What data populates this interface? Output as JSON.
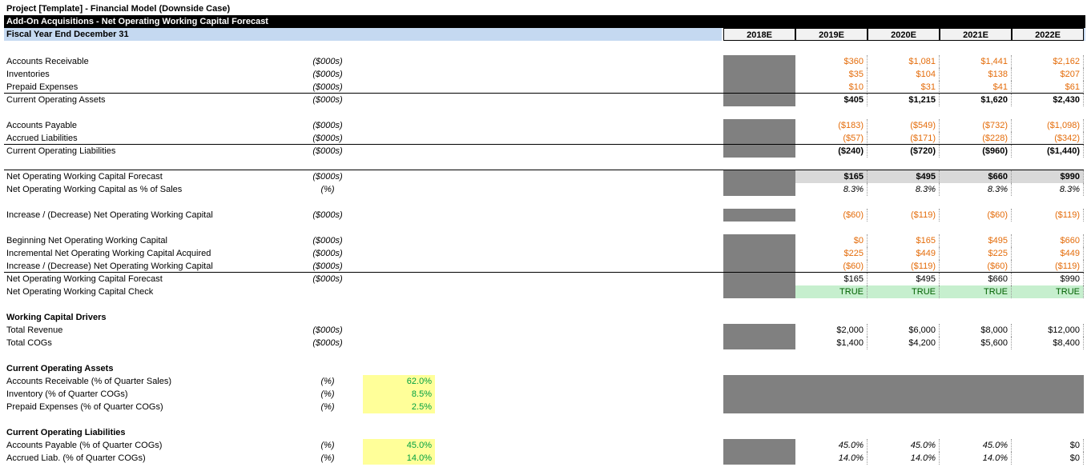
{
  "header": {
    "title": "Project [Template] - Financial Model (Downside Case)",
    "subtitle": "Add-On Acquisitions - Net Operating Working Capital Forecast",
    "fiscal_label": "Fiscal Year End December 31",
    "years": [
      "2018E",
      "2019E",
      "2020E",
      "2021E",
      "2022E"
    ]
  },
  "sections": [
    {
      "rows": [
        {
          "label": "Accounts Receivable",
          "unit": "($000s)",
          "values": [
            "$360",
            "$1,081",
            "$1,441",
            "$2,162"
          ]
        },
        {
          "label": "Inventories",
          "unit": "($000s)",
          "values": [
            "$35",
            "$104",
            "$138",
            "$207"
          ]
        },
        {
          "label": "Prepaid Expenses",
          "unit": "($000s)",
          "values": [
            "$10",
            "$31",
            "$41",
            "$61"
          ]
        },
        {
          "label": "Current Operating Assets",
          "unit": "($000s)",
          "values": [
            "$405",
            "$1,215",
            "$1,620",
            "$2,430"
          ]
        }
      ]
    },
    {
      "rows": [
        {
          "label": "Accounts Payable",
          "unit": "($000s)",
          "values": [
            "($183)",
            "($549)",
            "($732)",
            "($1,098)"
          ]
        },
        {
          "label": "Accrued Liabilities",
          "unit": "($000s)",
          "values": [
            "($57)",
            "($171)",
            "($228)",
            "($342)"
          ]
        },
        {
          "label": "Current Operating Liabilities",
          "unit": "($000s)",
          "values": [
            "($240)",
            "($720)",
            "($960)",
            "($1,440)"
          ]
        }
      ]
    },
    {
      "rows": [
        {
          "label": "Net Operating Working Capital Forecast",
          "unit": "($000s)",
          "values": [
            "$165",
            "$495",
            "$660",
            "$990"
          ]
        },
        {
          "label": "Net Operating Working Capital as % of Sales",
          "unit": "(%)",
          "values": [
            "8.3%",
            "8.3%",
            "8.3%",
            "8.3%"
          ]
        }
      ]
    },
    {
      "rows": [
        {
          "label": "Increase / (Decrease) Net Operating Working Capital",
          "unit": "($000s)",
          "values": [
            "($60)",
            "($119)",
            "($60)",
            "($119)"
          ]
        }
      ]
    },
    {
      "rows": [
        {
          "label": "Beginning Net Operating Working Capital",
          "unit": "($000s)",
          "values": [
            "$0",
            "$165",
            "$495",
            "$660"
          ]
        },
        {
          "label": "Incremental Net Operating Working Capital Acquired",
          "unit": "($000s)",
          "values": [
            "$225",
            "$449",
            "$225",
            "$449"
          ]
        },
        {
          "label": "Increase / (Decrease) Net Operating Working Capital",
          "unit": "($000s)",
          "values": [
            "($60)",
            "($119)",
            "($60)",
            "($119)"
          ]
        },
        {
          "label": "Net Operating Working Capital Forecast",
          "unit": "($000s)",
          "values": [
            "$165",
            "$495",
            "$660",
            "$990"
          ]
        },
        {
          "label": "Net Operating Working Capital Check",
          "values": [
            "TRUE",
            "TRUE",
            "TRUE",
            "TRUE"
          ]
        }
      ]
    },
    {
      "heading": "Working Capital Drivers",
      "rows": [
        {
          "label": "Total Revenue",
          "unit": "($000s)",
          "values": [
            "$2,000",
            "$6,000",
            "$8,000",
            "$12,000"
          ]
        },
        {
          "label": "Total COGs",
          "unit": "($000s)",
          "values": [
            "$1,400",
            "$4,200",
            "$5,600",
            "$8,400"
          ]
        }
      ]
    },
    {
      "heading": "Current Operating Assets",
      "rows": [
        {
          "label": "Accounts Receivable (% of Quarter Sales)",
          "unit": "(%)",
          "input": "62.0%"
        },
        {
          "label": "Inventory (% of Quarter COGs)",
          "unit": "(%)",
          "input": "8.5%"
        },
        {
          "label": "Prepaid Expenses (% of Quarter COGs)",
          "unit": "(%)",
          "input": "2.5%"
        }
      ]
    },
    {
      "heading": "Current Operating Liabilities",
      "rows": [
        {
          "label": "Accounts Payable (% of Quarter COGs)",
          "unit": "(%)",
          "input": "45.0%",
          "values": [
            "45.0%",
            "45.0%",
            "45.0%",
            "$0"
          ]
        },
        {
          "label": "Accrued Liab. (% of Quarter COGs)",
          "unit": "(%)",
          "input": "14.0%",
          "values": [
            "14.0%",
            "14.0%",
            "14.0%",
            "$0"
          ]
        }
      ]
    }
  ]
}
